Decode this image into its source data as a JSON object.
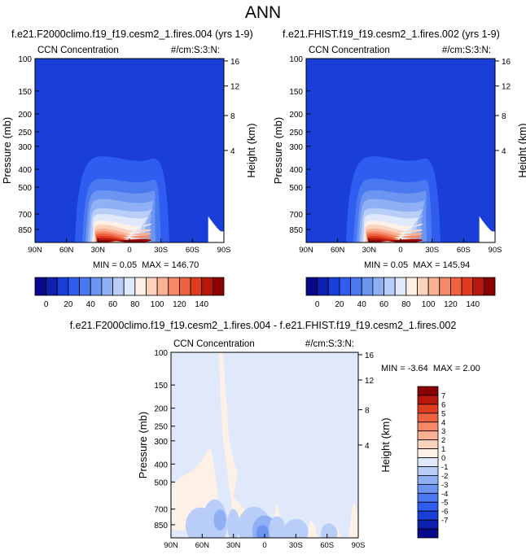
{
  "page": {
    "title": "ANN"
  },
  "panels": [
    {
      "title": "f.e21.F2000climo.f19_f19.cesm2_1.fires.004 (yrs 1-9)",
      "left_label": "CCN Concentration",
      "right_label": "#/cm:S:3:N:",
      "min_label": "MIN =",
      "min_value": "0.05",
      "max_label": "MAX =",
      "max_value": "146.70"
    },
    {
      "title": "f.e21.FHIST.f19_f19.cesm2_1.fires.002 (yrs 1-9)",
      "left_label": "CCN Concentration",
      "right_label": "#/cm:S:3:N:",
      "min_label": "MIN =",
      "min_value": "0.05",
      "max_label": "MAX =",
      "max_value": "145.94"
    },
    {
      "title": "f.e21.F2000climo.f19_f19.cesm2_1.fires.004 - f.e21.FHIST.f19_f19.cesm2_1.fires.002",
      "left_label": "CCN Concentration",
      "right_label": "#/cm:S:3:N:",
      "min_label": "MIN =",
      "min_value": "-3.64",
      "max_label": "MAX =",
      "max_value": "2.00"
    }
  ],
  "chart_data": [
    {
      "type": "heatmap",
      "subtype": "filled-contour",
      "title": "f.e21.F2000climo.f19_f19.cesm2_1.fires.004 (yrs 1-9)",
      "xlabel": "",
      "ylabel": "Pressure (mb)",
      "y2label": "Height (km)",
      "x_ticks": [
        "90N",
        "60N",
        "30N",
        "0",
        "30S",
        "60S",
        "90S"
      ],
      "y_ticks": [
        "100",
        "150",
        "200",
        "250",
        "300",
        "400",
        "500",
        "700",
        "850"
      ],
      "y2_ticks": [
        "16",
        "12",
        "8",
        "4"
      ],
      "pressure_range": [
        100,
        1000
      ],
      "latitude_range": [
        90,
        -90
      ],
      "min": 0.05,
      "max": 146.7,
      "peak": {
        "lat": 25,
        "pressure": 950,
        "value": 146.7
      },
      "colorbar": {
        "ticks": [
          "0",
          "20",
          "40",
          "60",
          "80",
          "100",
          "120",
          "140"
        ],
        "colors": [
          "#08088b",
          "#0c1fae",
          "#1a3fd8",
          "#2f5df0",
          "#4a78f0",
          "#6c95f2",
          "#90b0f5",
          "#b8cdf8",
          "#dfe9fb",
          "#fdf0e6",
          "#fbd3bd",
          "#f9b093",
          "#f58967",
          "#ef6240",
          "#dd3c1e",
          "#b8180c",
          "#8b0000"
        ]
      }
    },
    {
      "type": "heatmap",
      "subtype": "filled-contour",
      "title": "f.e21.FHIST.f19_f19.cesm2_1.fires.002 (yrs 1-9)",
      "xlabel": "",
      "ylabel": "Pressure (mb)",
      "y2label": "Height (km)",
      "x_ticks": [
        "90N",
        "60N",
        "30N",
        "0",
        "30S",
        "60S",
        "90S"
      ],
      "y_ticks": [
        "100",
        "150",
        "200",
        "250",
        "300",
        "400",
        "500",
        "700",
        "850"
      ],
      "y2_ticks": [
        "16",
        "12",
        "8",
        "4"
      ],
      "pressure_range": [
        100,
        1000
      ],
      "latitude_range": [
        90,
        -90
      ],
      "min": 0.05,
      "max": 145.94,
      "peak": {
        "lat": 25,
        "pressure": 950,
        "value": 145.94
      },
      "colorbar": {
        "ticks": [
          "0",
          "20",
          "40",
          "60",
          "80",
          "100",
          "120",
          "140"
        ],
        "colors": [
          "#08088b",
          "#0c1fae",
          "#1a3fd8",
          "#2f5df0",
          "#4a78f0",
          "#6c95f2",
          "#90b0f5",
          "#b8cdf8",
          "#dfe9fb",
          "#fdf0e6",
          "#fbd3bd",
          "#f9b093",
          "#f58967",
          "#ef6240",
          "#dd3c1e",
          "#b8180c",
          "#8b0000"
        ]
      }
    },
    {
      "type": "heatmap",
      "subtype": "filled-contour",
      "title": "f.e21.F2000climo.f19_f19.cesm2_1.fires.004 - f.e21.FHIST.f19_f19.cesm2_1.fires.002",
      "xlabel": "",
      "ylabel": "Pressure (mb)",
      "y2label": "Height (km)",
      "x_ticks": [
        "90N",
        "60N",
        "30N",
        "0",
        "30S",
        "60S",
        "90S"
      ],
      "y_ticks": [
        "100",
        "150",
        "200",
        "250",
        "300",
        "400",
        "500",
        "700",
        "850"
      ],
      "y2_ticks": [
        "16",
        "12",
        "8",
        "4"
      ],
      "pressure_range": [
        100,
        1000
      ],
      "latitude_range": [
        90,
        -90
      ],
      "min": -3.64,
      "max": 2.0,
      "colorbar": {
        "ticks": [
          "7",
          "6",
          "5",
          "4",
          "3",
          "2",
          "1",
          "0",
          "-1",
          "-2",
          "-3",
          "-4",
          "-5",
          "-6",
          "-7"
        ],
        "colors": [
          "#8b0000",
          "#b8180c",
          "#dd3c1e",
          "#ef6240",
          "#f58967",
          "#f9b093",
          "#fbd3bd",
          "#fdf0e6",
          "#dfe9fb",
          "#b8cdf8",
          "#90b0f5",
          "#6c95f2",
          "#4a78f0",
          "#2f5df0",
          "#1a3fd8",
          "#0c1fae",
          "#08088b"
        ]
      }
    }
  ]
}
